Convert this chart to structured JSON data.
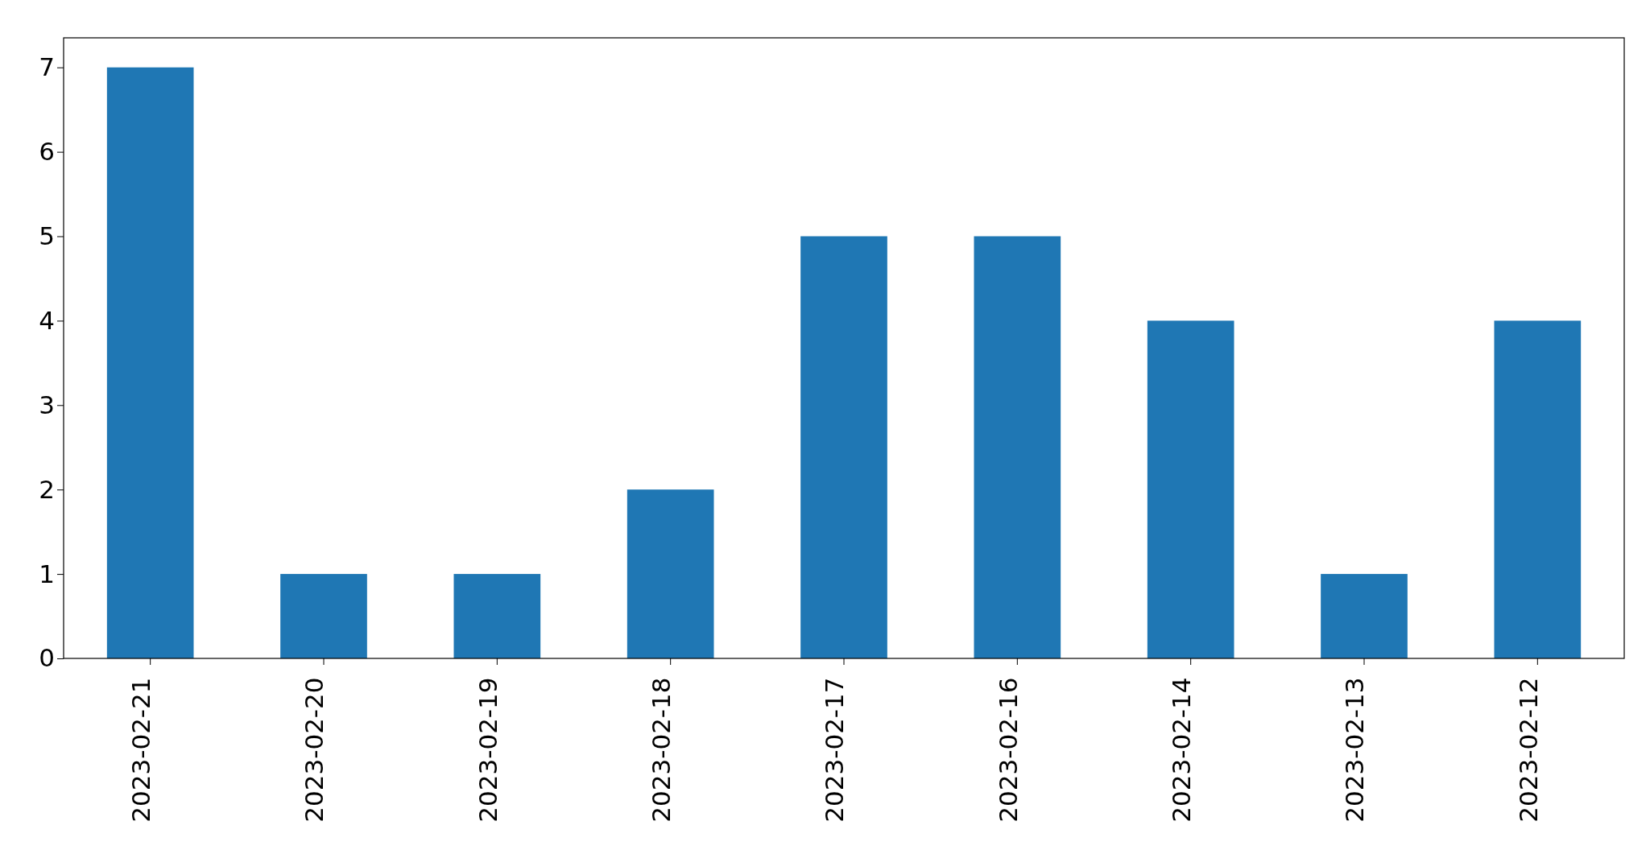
{
  "chart_data": {
    "type": "bar",
    "categories": [
      "2023-02-21",
      "2023-02-20",
      "2023-02-19",
      "2023-02-18",
      "2023-02-17",
      "2023-02-16",
      "2023-02-14",
      "2023-02-13",
      "2023-02-12"
    ],
    "values": [
      7,
      1,
      1,
      2,
      5,
      5,
      4,
      1,
      4
    ],
    "color": "#1f77b4",
    "ylim": [
      0,
      7.35
    ],
    "yticks": [
      0,
      1,
      2,
      3,
      4,
      5,
      6,
      7
    ],
    "grid": false
  }
}
